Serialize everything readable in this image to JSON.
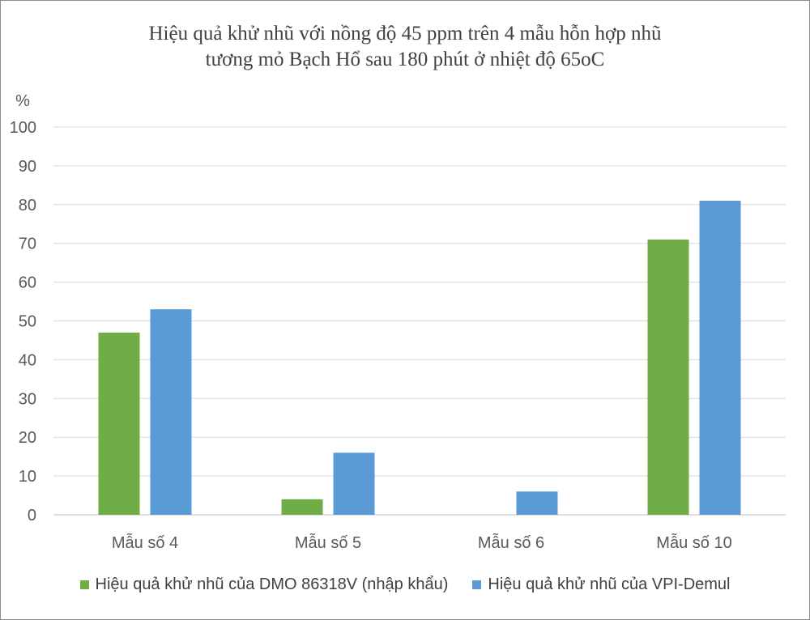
{
  "chart_data": {
    "type": "bar",
    "title_lines": [
      "Hiệu quả khử nhũ với nồng độ 45 ppm trên 4 mẫu hỗn hợp nhũ",
      "tương mỏ Bạch Hổ sau 180 phút ở nhiệt độ 65oC"
    ],
    "ylabel": "%",
    "xlabel": "",
    "categories": [
      "Mẫu số 4",
      "Mẫu số 5",
      "Mẫu số 6",
      "Mẫu số 10"
    ],
    "series": [
      {
        "name": "Hiệu quả khử nhũ của DMO 86318V (nhập khẩu)",
        "color": "#70ad47",
        "values": [
          47,
          4,
          0,
          71
        ]
      },
      {
        "name": "Hiệu quả khử nhũ của VPI-Demul",
        "color": "#5b9bd5",
        "values": [
          53,
          16,
          6,
          81
        ]
      }
    ],
    "ylim": [
      0,
      100
    ],
    "yticks": [
      "0",
      "10",
      "20",
      "30",
      "40",
      "50",
      "60",
      "70",
      "80",
      "90",
      "100"
    ],
    "grid": true,
    "legend_position": "bottom"
  }
}
